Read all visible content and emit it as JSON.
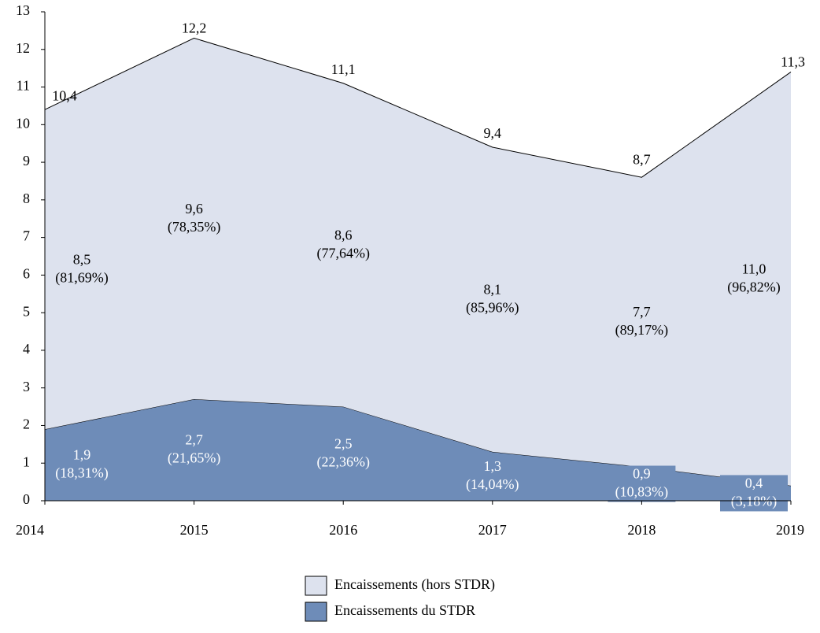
{
  "chart_data": {
    "type": "stacked-area",
    "x": [
      2014,
      2015,
      2016,
      2017,
      2018,
      2019
    ],
    "xlim": [
      2014,
      2019
    ],
    "ylim": [
      0,
      13
    ],
    "yticks": [
      0,
      1,
      2,
      3,
      4,
      5,
      6,
      7,
      8,
      9,
      10,
      11,
      12,
      13
    ],
    "grid": false,
    "legend": "bottom",
    "series": [
      {
        "name": "Encaissements du STDR",
        "color": "#6e8cb8",
        "values": [
          1.9,
          2.7,
          2.5,
          1.3,
          0.9,
          0.4
        ],
        "value_labels": [
          "1,9",
          "2,7",
          "2,5",
          "1,3",
          "0,9",
          "0,4"
        ],
        "shares": [
          18.31,
          21.65,
          22.36,
          14.04,
          10.83,
          3.18
        ],
        "share_labels": [
          "(18,31%)",
          "(21,65%)",
          "(22,36%)",
          "(14,04%)",
          "(10,83%)",
          "(3,18%)"
        ]
      },
      {
        "name": "Encaissements (hors STDR)",
        "color": "#dde2ee",
        "values": [
          8.5,
          9.6,
          8.6,
          8.1,
          7.7,
          11.0
        ],
        "value_labels": [
          "8,5",
          "9,6",
          "8,6",
          "8,1",
          "7,7",
          "11,0"
        ],
        "shares": [
          81.69,
          78.35,
          77.64,
          85.96,
          89.17,
          96.82
        ],
        "share_labels": [
          "(81,69%)",
          "(78,35%)",
          "(77,64%)",
          "(85,96%)",
          "(89,17%)",
          "(96,82%)"
        ]
      }
    ],
    "totals": {
      "values": [
        10.4,
        12.2,
        11.1,
        9.4,
        8.7,
        11.3
      ],
      "value_labels": [
        "10,4",
        "12,2",
        "11,1",
        "9,4",
        "8,7",
        "11,3"
      ]
    }
  }
}
